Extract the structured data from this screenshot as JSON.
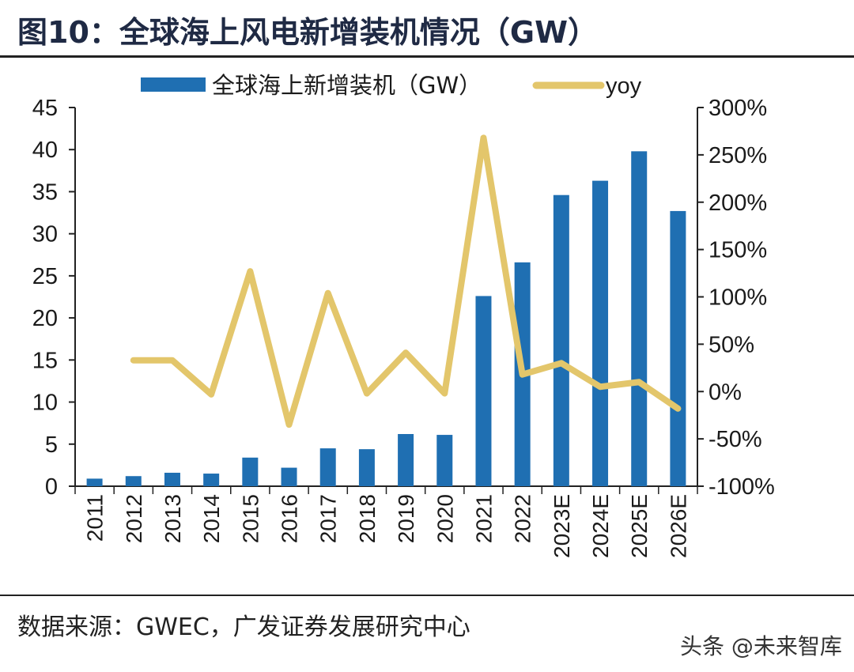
{
  "header": {
    "title": "图10：全球海上风电新增装机情况（GW）"
  },
  "footer": {
    "source": "数据来源：GWEC，广发证券发展研究中心",
    "watermark": "头条 @未来智库"
  },
  "colors": {
    "bar": "#1f6fb2",
    "line": "#e3c66b",
    "axis": "#222222",
    "title": "#1f2a44"
  },
  "chart_data": {
    "type": "bar",
    "title": "图10：全球海上风电新增装机情况（GW）",
    "categories": [
      "2011",
      "2012",
      "2013",
      "2014",
      "2015",
      "2016",
      "2017",
      "2018",
      "2019",
      "2020",
      "2021",
      "2022",
      "2023E",
      "2024E",
      "2025E",
      "2026E"
    ],
    "series": [
      {
        "name": "全球海上新增装机（GW）",
        "type": "bar",
        "axis": "left",
        "values": [
          0.9,
          1.2,
          1.6,
          1.5,
          3.4,
          2.2,
          4.5,
          4.4,
          6.2,
          6.1,
          22.6,
          26.6,
          34.6,
          36.3,
          39.8,
          32.7
        ]
      },
      {
        "name": "yoy",
        "type": "line",
        "axis": "right",
        "values": [
          null,
          33,
          33,
          -3,
          127,
          -35,
          104,
          -2,
          41,
          -2,
          268,
          18,
          30,
          5,
          10,
          -18
        ]
      }
    ],
    "left_axis": {
      "min": 0,
      "max": 45,
      "step": 5,
      "ticks": [
        "0",
        "5",
        "10",
        "15",
        "20",
        "25",
        "30",
        "35",
        "40",
        "45"
      ]
    },
    "right_axis": {
      "min": -100,
      "max": 300,
      "step": 50,
      "ticks": [
        "-100%",
        "-50%",
        "0%",
        "50%",
        "100%",
        "150%",
        "200%",
        "250%",
        "300%"
      ]
    },
    "legend": {
      "position": "top",
      "entries": [
        "全球海上新增装机（GW）",
        "yoy"
      ]
    },
    "xlabel": "",
    "ylabel": "",
    "grid": false
  }
}
